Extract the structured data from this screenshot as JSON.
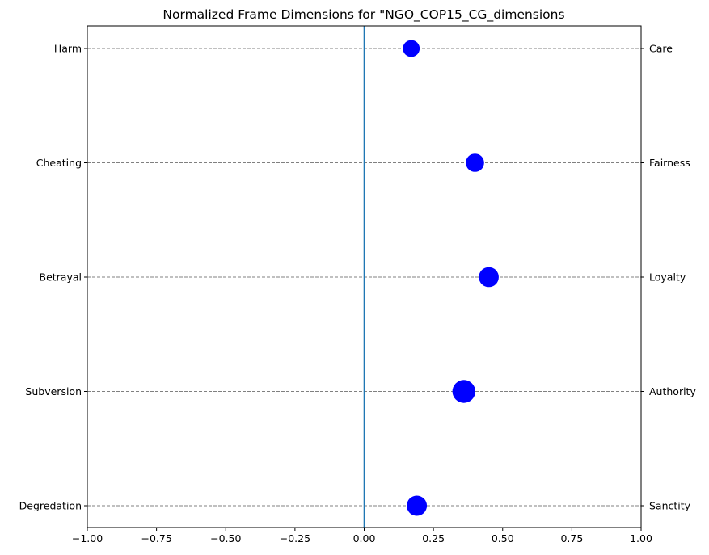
{
  "chart_data": {
    "type": "scatter",
    "title": "Normalized Frame Dimensions for \"NGO_COP15_CG_dimensions",
    "xlabel": "",
    "ylabel": "",
    "xlim": [
      -1.0,
      1.0
    ],
    "xticks": [
      "−1.00",
      "−0.75",
      "−0.50",
      "−0.25",
      "0.00",
      "0.25",
      "0.50",
      "0.75",
      "1.00"
    ],
    "xtick_values": [
      -1.0,
      -0.75,
      -0.5,
      -0.25,
      0.0,
      0.25,
      0.5,
      0.75,
      1.0
    ],
    "left_labels": [
      "Harm",
      "Cheating",
      "Betrayal",
      "Subversion",
      "Degredation"
    ],
    "right_labels": [
      "Care",
      "Fairness",
      "Loyalty",
      "Authority",
      "Sanctity"
    ],
    "points": [
      {
        "category": "Care",
        "x": 0.17,
        "size": 0.4
      },
      {
        "category": "Fairness",
        "x": 0.4,
        "size": 0.5
      },
      {
        "category": "Loyalty",
        "x": 0.45,
        "size": 0.62
      },
      {
        "category": "Authority",
        "x": 0.36,
        "size": 0.85
      },
      {
        "category": "Sanctity",
        "x": 0.19,
        "size": 0.65
      }
    ],
    "reference_line_x": 0.0,
    "grid": "horizontal dashed",
    "colors": {
      "points": "#0000ff",
      "reference_line": "#1f77b4",
      "grid": "#808080",
      "axes": "#000000"
    }
  }
}
